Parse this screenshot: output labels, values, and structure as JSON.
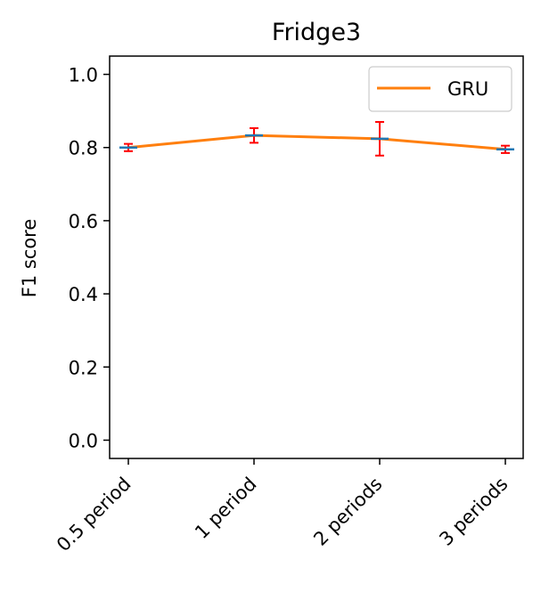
{
  "chart_data": {
    "type": "line",
    "title": "Fridge3",
    "xlabel": "",
    "ylabel": "F1 score",
    "categories": [
      "0.5 period",
      "1 period",
      "2 periods",
      "3 periods"
    ],
    "ylim": [
      -0.05,
      1.05
    ],
    "yticks": [
      "0.0",
      "0.2",
      "0.4",
      "0.6",
      "0.8",
      "1.0"
    ],
    "grid": false,
    "legend_position": "top-right",
    "series": [
      {
        "name": "GRU",
        "values": [
          0.8,
          0.833,
          0.824,
          0.795
        ],
        "error_low": [
          0.79,
          0.813,
          0.778,
          0.785
        ],
        "error_high": [
          0.81,
          0.853,
          0.87,
          0.805
        ],
        "color": "#ff7f0e",
        "error_color": "#ff0000",
        "marker_color": "#1f77b4"
      }
    ]
  }
}
